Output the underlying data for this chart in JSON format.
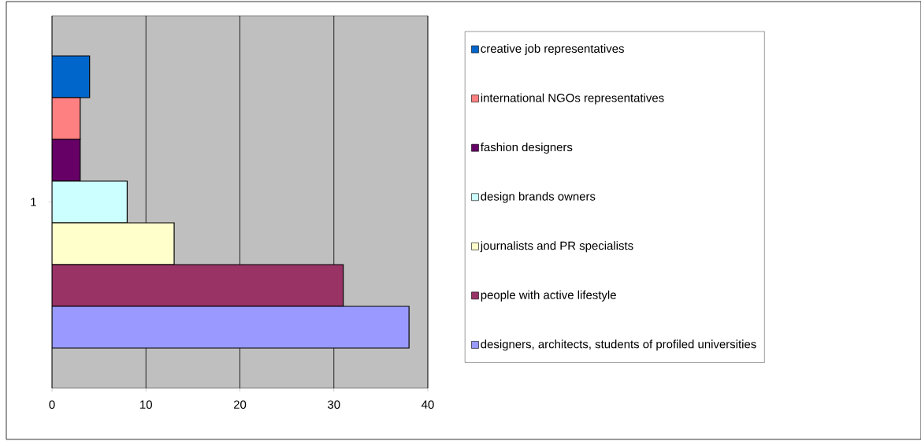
{
  "chart_data": {
    "type": "bar",
    "orientation": "horizontal",
    "categories": [
      "1"
    ],
    "series": [
      {
        "name": "creative job representatives",
        "color": "#0066cc",
        "values": [
          4
        ]
      },
      {
        "name": "international NGOs representatives",
        "color": "#ff8080",
        "values": [
          3
        ]
      },
      {
        "name": "fashion designers",
        "color": "#660066",
        "values": [
          3
        ]
      },
      {
        "name": "design brands owners",
        "color": "#ccffff",
        "values": [
          8
        ]
      },
      {
        "name": "journalists and PR specialists",
        "color": "#ffffcc",
        "values": [
          13
        ]
      },
      {
        "name": "people with active lifestyle",
        "color": "#993366",
        "values": [
          31
        ]
      },
      {
        "name": "designers, architects, students of profiled universities",
        "color": "#9999ff",
        "values": [
          38
        ]
      }
    ],
    "xlim": [
      0,
      40
    ],
    "xticks": [
      0,
      10,
      20,
      30,
      40
    ],
    "grid": "x",
    "legend": "right"
  }
}
